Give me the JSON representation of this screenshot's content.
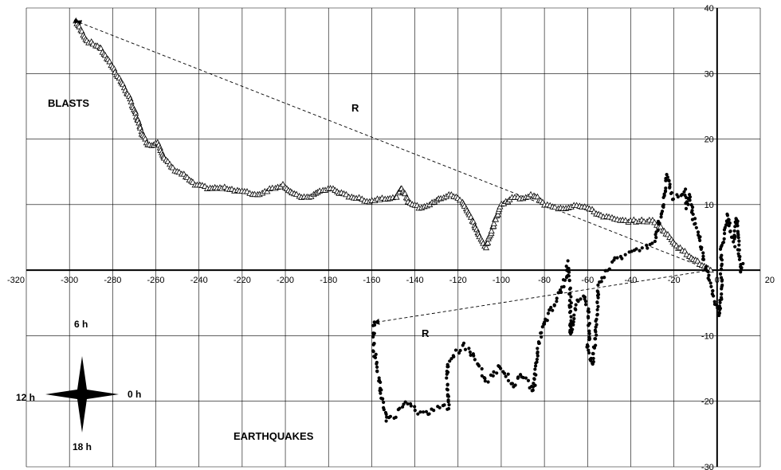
{
  "chart_data": {
    "type": "scatter",
    "xlim": [
      -320,
      20
    ],
    "ylim": [
      -30,
      40
    ],
    "x_ticks": [
      -320,
      -300,
      -280,
      -260,
      -240,
      -220,
      -200,
      -180,
      -160,
      -140,
      -120,
      -100,
      -80,
      -60,
      -40,
      -20,
      0,
      20
    ],
    "y_ticks": [
      -30,
      -20,
      -10,
      10,
      20,
      30,
      40
    ],
    "grid": true,
    "annotations": {
      "blasts": "BLASTS",
      "earthquakes": "EARTHQUAKES",
      "r_upper": "R",
      "r_lower": "R"
    },
    "compass": {
      "top": "6 h",
      "left": "12 h",
      "right": "0 h",
      "bottom": "18 h"
    },
    "series": [
      {
        "marker": "open-triangle",
        "anchors": [
          [
            -297,
            38
          ],
          [
            -292,
            35
          ],
          [
            -286,
            34
          ],
          [
            -280,
            31
          ],
          [
            -274,
            27.5
          ],
          [
            -270,
            24.5
          ],
          [
            -266,
            20.5
          ],
          [
            -263,
            19
          ],
          [
            -259,
            19.5
          ],
          [
            -256,
            17
          ],
          [
            -252,
            15.5
          ],
          [
            -247,
            14.5
          ],
          [
            -242,
            13
          ],
          [
            -235,
            12.5
          ],
          [
            -227,
            12.5
          ],
          [
            -220,
            12
          ],
          [
            -213,
            11.5
          ],
          [
            -206,
            12.5
          ],
          [
            -201,
            13
          ],
          [
            -196,
            11.5
          ],
          [
            -190,
            11
          ],
          [
            -184,
            12
          ],
          [
            -179,
            12.5
          ],
          [
            -173,
            11.5
          ],
          [
            -167,
            11
          ],
          [
            -161,
            10.5
          ],
          [
            -155,
            11
          ],
          [
            -149,
            11
          ],
          [
            -146,
            12.5
          ],
          [
            -143,
            10.5
          ],
          [
            -138,
            9.5
          ],
          [
            -133,
            10
          ],
          [
            -128,
            11
          ],
          [
            -123,
            11.5
          ],
          [
            -118,
            10.5
          ],
          [
            -114,
            8
          ],
          [
            -110,
            5
          ],
          [
            -107,
            3.5
          ],
          [
            -104,
            6.5
          ],
          [
            -100,
            10
          ],
          [
            -95,
            11
          ],
          [
            -90,
            11
          ],
          [
            -85,
            11.5
          ],
          [
            -80,
            10
          ],
          [
            -75,
            9.5
          ],
          [
            -70,
            9.5
          ],
          [
            -65,
            10
          ],
          [
            -60,
            9.5
          ],
          [
            -55,
            8.5
          ],
          [
            -50,
            8
          ],
          [
            -45,
            7.5
          ],
          [
            -40,
            7.5
          ],
          [
            -35,
            7.5
          ],
          [
            -30,
            7.5
          ],
          [
            -26,
            6.5
          ],
          [
            -22,
            5
          ],
          [
            -18,
            3.5
          ],
          [
            -14,
            2.5
          ],
          [
            -10,
            1.5
          ],
          [
            -6,
            0.5
          ],
          [
            -3,
            0
          ]
        ]
      },
      {
        "marker": "filled-circle",
        "anchors": [
          [
            -159,
            -8
          ],
          [
            -159,
            -12
          ],
          [
            -157,
            -16
          ],
          [
            -155,
            -20
          ],
          [
            -153,
            -23
          ],
          [
            -149,
            -22
          ],
          [
            -146,
            -21
          ],
          [
            -143,
            -20
          ],
          [
            -139,
            -21.5
          ],
          [
            -135,
            -22
          ],
          [
            -131,
            -21
          ],
          [
            -127,
            -20.5
          ],
          [
            -124,
            -21
          ],
          [
            -125,
            -17
          ],
          [
            -125,
            -14
          ],
          [
            -121,
            -12.5
          ],
          [
            -117,
            -11.5
          ],
          [
            -113,
            -13
          ],
          [
            -110,
            -15
          ],
          [
            -107,
            -17
          ],
          [
            -104,
            -16
          ],
          [
            -101,
            -14.5
          ],
          [
            -98,
            -16
          ],
          [
            -94,
            -17.5
          ],
          [
            -91,
            -16
          ],
          [
            -87,
            -17.5
          ],
          [
            -85,
            -18.5
          ],
          [
            -83,
            -12
          ],
          [
            -81,
            -9
          ],
          [
            -78,
            -6.5
          ],
          [
            -75,
            -5
          ],
          [
            -72,
            -3
          ],
          [
            -70,
            -1
          ],
          [
            -69,
            1
          ],
          [
            -68,
            -4
          ],
          [
            -68,
            -8
          ],
          [
            -68,
            -10
          ],
          [
            -67,
            -8
          ],
          [
            -65,
            -5
          ],
          [
            -62,
            -4
          ],
          [
            -60,
            -6
          ],
          [
            -59,
            -10
          ],
          [
            -60,
            -12.5
          ],
          [
            -58,
            -14.5
          ],
          [
            -57,
            -12
          ],
          [
            -56,
            -9
          ],
          [
            -55,
            -2.5
          ],
          [
            -52,
            -0.5
          ],
          [
            -49,
            1
          ],
          [
            -45,
            2
          ],
          [
            -41,
            2.5
          ],
          [
            -37,
            3
          ],
          [
            -33,
            3.5
          ],
          [
            -29,
            4.5
          ],
          [
            -27,
            7
          ],
          [
            -25,
            9.5
          ],
          [
            -24,
            12.5
          ],
          [
            -23,
            14.5
          ],
          [
            -21,
            11
          ],
          [
            -18,
            11.5
          ],
          [
            -15,
            12
          ],
          [
            -14,
            9.5
          ],
          [
            -13,
            11.5
          ],
          [
            -11,
            8
          ],
          [
            -9,
            6
          ],
          [
            -7,
            3
          ],
          [
            -5,
            0
          ],
          [
            -3,
            -2
          ],
          [
            -1,
            -5
          ],
          [
            1,
            -7
          ],
          [
            2,
            -3
          ],
          [
            2,
            3
          ],
          [
            4,
            7
          ],
          [
            5,
            8.5
          ],
          [
            6,
            6
          ],
          [
            8,
            4
          ],
          [
            9,
            8
          ],
          [
            10,
            3
          ],
          [
            11,
            0
          ],
          [
            12,
            1
          ]
        ]
      }
    ],
    "arrows": [
      {
        "from": [
          -3,
          0
        ],
        "to": [
          -297,
          38
        ]
      },
      {
        "from": [
          -3,
          0
        ],
        "to": [
          -159,
          -8
        ]
      }
    ]
  }
}
